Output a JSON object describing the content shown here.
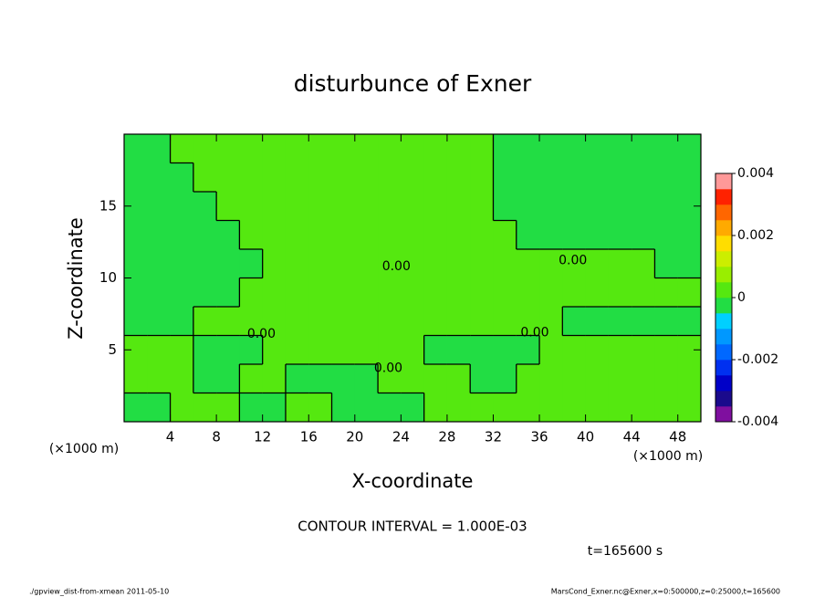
{
  "chart_data": {
    "type": "contour",
    "title": "disturbunce of Exner",
    "xlabel": "X-coordinate",
    "ylabel": "Z-coordinate",
    "xunit": "(×1000 m)",
    "yunit": "(×1000 m)",
    "xlim": [
      0,
      50
    ],
    "ylim": [
      0,
      20
    ],
    "xticks": [
      4,
      8,
      12,
      16,
      20,
      24,
      28,
      32,
      36,
      40,
      44,
      48
    ],
    "yticks": [
      5,
      10,
      15
    ],
    "levels": [
      -0.004,
      -0.0035,
      -0.003,
      -0.0025,
      -0.002,
      -0.0015,
      -0.001,
      -0.0005,
      0,
      0.0005,
      0.001,
      0.0015,
      0.002,
      0.0025,
      0.003,
      0.0035,
      0.004
    ],
    "colors": [
      "#7f0f9f",
      "#1a0a8c",
      "#0000c8",
      "#0030f0",
      "#0068ff",
      "#0098ff",
      "#00d0ff",
      "#22dd44",
      "#55e810",
      "#99ee00",
      "#ccee00",
      "#ffdd00",
      "#ffaa00",
      "#ff6600",
      "#ff2200",
      "#ff9999"
    ],
    "colorbar_ticks": [
      0.004,
      0.002,
      0,
      -0.002,
      -0.004
    ],
    "z": [
      [
        -0.0002,
        -0.0002,
        0.0002,
        0.0002,
        0.0002,
        -0.0002,
        -0.0002,
        0.0002,
        0.0002,
        -0.0002,
        -0.0002,
        -0.0002,
        -0.0002,
        0.0002,
        0.0002,
        0.0002,
        0.0002,
        0.0002,
        0.0002,
        0.0002,
        0.0002,
        0.0002,
        0.0002,
        0.0002,
        0.0002
      ],
      [
        0.0002,
        0.0002,
        0.0002,
        -0.0002,
        -0.0002,
        0.0002,
        0.0002,
        -0.0002,
        -0.0002,
        -0.0002,
        -0.0002,
        0.0002,
        0.0002,
        0.0002,
        0.0002,
        -0.0002,
        -0.0002,
        0.0002,
        0.0002,
        0.0002,
        0.0002,
        0.0002,
        0.0002,
        0.0002,
        0.0002
      ],
      [
        0.0002,
        0.0002,
        0.0002,
        -0.0002,
        -0.0002,
        -0.0002,
        0.0002,
        0.0002,
        0.0002,
        0.0002,
        0.0002,
        0.0002,
        0.0002,
        -0.0002,
        -0.0002,
        -0.0002,
        -0.0002,
        -0.0002,
        0.0002,
        0.0002,
        0.0002,
        0.0002,
        0.0002,
        0.0002,
        0.0002
      ],
      [
        -0.0002,
        -0.0002,
        -0.0002,
        0.0002,
        0.0002,
        0.0002,
        0.0002,
        0.0002,
        0.0002,
        0.0002,
        0.0002,
        0.0002,
        0.0002,
        0.0002,
        0.0002,
        0.0002,
        0.0002,
        0.0002,
        0.0002,
        -0.0002,
        -0.0002,
        -0.0002,
        -0.0002,
        -0.0002,
        -0.0002
      ],
      [
        -0.0002,
        -0.0002,
        -0.0002,
        -0.0002,
        -0.0002,
        0.0002,
        0.0002,
        0.0002,
        0.0002,
        0.0002,
        0.0002,
        0.0002,
        0.0002,
        0.0002,
        0.0002,
        0.0002,
        0.0002,
        0.0002,
        0.0002,
        0.0002,
        0.0002,
        0.0002,
        0.0002,
        0.0002,
        0.0002
      ],
      [
        -0.0002,
        -0.0002,
        -0.0002,
        -0.0002,
        -0.0002,
        -0.0002,
        0.0002,
        0.0002,
        0.0002,
        0.0002,
        0.0002,
        0.0002,
        0.0002,
        0.0002,
        0.0002,
        0.0002,
        0.0002,
        0.0002,
        0.0002,
        0.0002,
        0.0002,
        0.0002,
        0.0002,
        -0.0002,
        -0.0002
      ],
      [
        -0.0002,
        -0.0002,
        -0.0002,
        -0.0002,
        -0.0002,
        0.0002,
        0.0002,
        0.0002,
        0.0002,
        0.0002,
        0.0002,
        0.0002,
        0.0002,
        0.0002,
        0.0002,
        0.0002,
        0.0002,
        -0.0002,
        -0.0002,
        -0.0002,
        -0.0002,
        -0.0002,
        -0.0002,
        -0.0002,
        -0.0002
      ],
      [
        -0.0002,
        -0.0002,
        -0.0002,
        -0.0002,
        0.0002,
        0.0002,
        0.0002,
        0.0002,
        0.0002,
        0.0002,
        0.0002,
        0.0002,
        0.0002,
        0.0002,
        0.0002,
        0.0002,
        -0.0002,
        -0.0002,
        -0.0002,
        -0.0002,
        -0.0002,
        -0.0002,
        -0.0002,
        -0.0002,
        -0.0002
      ],
      [
        -0.0002,
        -0.0002,
        -0.0002,
        0.0002,
        0.0002,
        0.0002,
        0.0002,
        0.0002,
        0.0002,
        0.0002,
        0.0002,
        0.0002,
        0.0002,
        0.0002,
        0.0002,
        0.0002,
        -0.0002,
        -0.0002,
        -0.0002,
        -0.0002,
        -0.0002,
        -0.0002,
        -0.0002,
        -0.0002,
        -0.0002
      ],
      [
        -0.0002,
        -0.0002,
        0.0002,
        0.0002,
        0.0002,
        0.0002,
        0.0002,
        0.0002,
        0.0002,
        0.0002,
        0.0002,
        0.0002,
        0.0002,
        0.0002,
        0.0002,
        0.0002,
        -0.0002,
        -0.0002,
        -0.0002,
        -0.0002,
        -0.0002,
        -0.0002,
        -0.0002,
        -0.0002,
        -0.0002
      ]
    ],
    "annotations": [
      {
        "text": "0.00",
        "x": 23.6,
        "y": 10.8
      },
      {
        "text": "0.00",
        "x": 38.9,
        "y": 11.2
      },
      {
        "text": "0.00",
        "x": 11.9,
        "y": 6.1
      },
      {
        "text": "0.00",
        "x": 22.9,
        "y": 3.7
      },
      {
        "text": "0.00",
        "x": 35.6,
        "y": 6.2
      }
    ],
    "contour_interval": "CONTOUR INTERVAL = 1.000E-03",
    "time": "t=165600 s",
    "footer_left": "./gpview_dist-from-xmean  2011-05-10",
    "footer_right": "MarsCond_Exner.nc@Exner,x=0:500000,z=0:25000,t=165600"
  }
}
